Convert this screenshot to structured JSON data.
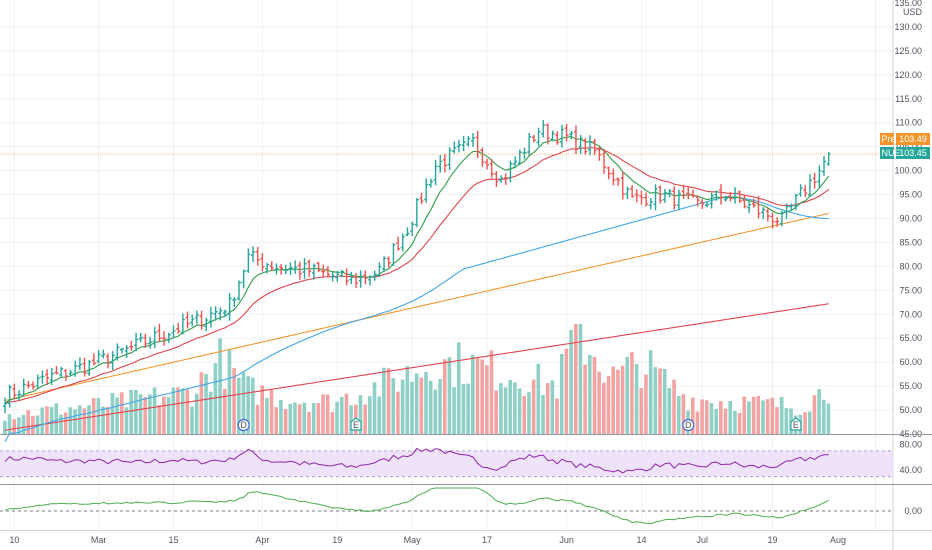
{
  "header": {
    "currency": "USD",
    "top_price": "135.00"
  },
  "colors": {
    "up": "#26a69a",
    "down": "#ef5350",
    "up_vol": "#8fd0c6",
    "down_vol": "#f4a3a3",
    "ema_fast": "#2e9e48",
    "ema_slow": "#e0454d",
    "sma50": "#3fa6e8",
    "sma100": "#f5962d",
    "sma200": "#e0454d",
    "rsi": "#8e24aa",
    "rsi_band": "#efe3fb",
    "osc": "#4caf50",
    "last_price": "#26a69a",
    "pre_price": "#f5962d",
    "grid": "#eef0f3"
  },
  "price_axis": {
    "labels": [
      "135.00",
      "130.00",
      "125.00",
      "120.00",
      "115.00",
      "110.00",
      "105.00",
      "100.00",
      "95.00",
      "90.00",
      "85.00",
      "80.00",
      "75.00",
      "70.00",
      "65.00",
      "60.00",
      "55.00",
      "50.00",
      "45.00"
    ],
    "pre_tag": {
      "label": "Pre",
      "value": "103.49"
    },
    "last_tag": {
      "label": "NUE",
      "value": "103.45"
    }
  },
  "rsi_axis": {
    "labels": [
      "80.00",
      "40.00"
    ]
  },
  "osc_axis": {
    "labels": [
      "0.00"
    ]
  },
  "time_axis": {
    "labels": [
      "10",
      "Mar",
      "15",
      "Apr",
      "19",
      "May",
      "17",
      "Jun",
      "14",
      "Jul",
      "19",
      "Aug"
    ]
  },
  "event_markers": [
    {
      "label": "D",
      "date": "Mar 31"
    },
    {
      "label": "E",
      "date": "Apr 22"
    },
    {
      "label": "D",
      "date": "Jun 29"
    },
    {
      "label": "E",
      "date": "Jul 22"
    }
  ],
  "chart_data": {
    "type": "ohlc",
    "ticker": "NUE",
    "currency": "USD",
    "ylim": [
      45,
      135
    ],
    "price_keypoints": [
      [
        0,
        53
      ],
      [
        10,
        57
      ],
      [
        18,
        59.5
      ],
      [
        26,
        62.5
      ],
      [
        34,
        66
      ],
      [
        42,
        69
      ],
      [
        48,
        72
      ],
      [
        52,
        82
      ],
      [
        58,
        80
      ],
      [
        66,
        79
      ],
      [
        74,
        77
      ],
      [
        80,
        79
      ],
      [
        86,
        88
      ],
      [
        92,
        101
      ],
      [
        100,
        106
      ],
      [
        106,
        98
      ],
      [
        114,
        108.5
      ],
      [
        120,
        107
      ],
      [
        126,
        104
      ],
      [
        134,
        94
      ],
      [
        140,
        95
      ],
      [
        148,
        93
      ],
      [
        154,
        95
      ],
      [
        160,
        92
      ],
      [
        166,
        89.5
      ],
      [
        170,
        95
      ],
      [
        174,
        100
      ],
      [
        176,
        103.45
      ]
    ],
    "volume_keypoints": [
      [
        0,
        1.2
      ],
      [
        20,
        1.8
      ],
      [
        40,
        2.6
      ],
      [
        46,
        4.6
      ],
      [
        52,
        2.8
      ],
      [
        60,
        2.2
      ],
      [
        70,
        2.0
      ],
      [
        80,
        3.0
      ],
      [
        90,
        4.2
      ],
      [
        98,
        4.4
      ],
      [
        110,
        3.6
      ],
      [
        118,
        3.0
      ],
      [
        122,
        6.5
      ],
      [
        130,
        3.5
      ],
      [
        136,
        4.4
      ],
      [
        146,
        2.2
      ],
      [
        156,
        2.0
      ],
      [
        166,
        1.8
      ],
      [
        170,
        1.7
      ],
      [
        176,
        2.9
      ]
    ],
    "overlays": [
      "EMA fast",
      "EMA slow",
      "SMA 50",
      "SMA 100",
      "SMA 200"
    ],
    "rsi_ylim": [
      20,
      90
    ],
    "rsi_levels": [
      70,
      30
    ],
    "osc_zero": 0
  }
}
